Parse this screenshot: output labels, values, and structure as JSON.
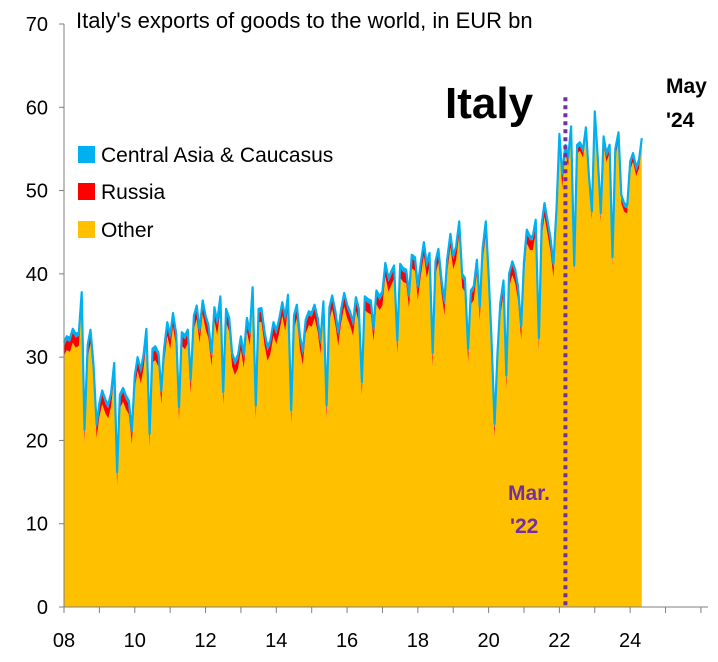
{
  "chart_data": {
    "type": "area",
    "title": "Italy's exports of goods to the world, in EUR bn",
    "ylim": [
      0,
      70
    ],
    "yticks": [
      "0",
      "10",
      "20",
      "30",
      "40",
      "50",
      "60",
      "70"
    ],
    "xlim": [
      2008,
      2026.2
    ],
    "xticks": [
      "08",
      "10",
      "12",
      "14",
      "16",
      "18",
      "20",
      "22",
      "24"
    ],
    "grid": false,
    "legend_position": "left",
    "colors": {
      "central_asia": "#00B0F0",
      "russia": "#FF0000",
      "other": "#FFC000",
      "marker": "#7030A0"
    },
    "series_names": [
      "Central Asia & Caucasus",
      "Russia",
      "Other"
    ],
    "total_series": [
      [
        2008.0,
        31.8
      ],
      [
        2008.08,
        32.5
      ],
      [
        2008.17,
        32.3
      ],
      [
        2008.25,
        33.4
      ],
      [
        2008.33,
        32.8
      ],
      [
        2008.42,
        33.0
      ],
      [
        2008.5,
        37.8
      ],
      [
        2008.58,
        21.3
      ],
      [
        2008.67,
        31.5
      ],
      [
        2008.75,
        33.3
      ],
      [
        2008.83,
        29.3
      ],
      [
        2008.92,
        21.9
      ],
      [
        2009.0,
        24.5
      ],
      [
        2009.08,
        26.0
      ],
      [
        2009.17,
        24.9
      ],
      [
        2009.25,
        24.3
      ],
      [
        2009.33,
        25.7
      ],
      [
        2009.42,
        29.3
      ],
      [
        2009.5,
        16.2
      ],
      [
        2009.58,
        25.5
      ],
      [
        2009.67,
        26.3
      ],
      [
        2009.75,
        25.4
      ],
      [
        2009.83,
        24.8
      ],
      [
        2009.92,
        21.2
      ],
      [
        2010.0,
        27.8
      ],
      [
        2010.08,
        30.0
      ],
      [
        2010.17,
        28.5
      ],
      [
        2010.25,
        30.3
      ],
      [
        2010.33,
        33.4
      ],
      [
        2010.42,
        20.8
      ],
      [
        2010.5,
        31.0
      ],
      [
        2010.58,
        31.3
      ],
      [
        2010.67,
        30.5
      ],
      [
        2010.75,
        26.0
      ],
      [
        2010.83,
        31.0
      ],
      [
        2010.92,
        34.2
      ],
      [
        2011.0,
        32.6
      ],
      [
        2011.08,
        35.3
      ],
      [
        2011.17,
        32.8
      ],
      [
        2011.25,
        24.0
      ],
      [
        2011.33,
        33.0
      ],
      [
        2011.42,
        32.6
      ],
      [
        2011.5,
        33.3
      ],
      [
        2011.58,
        27.3
      ],
      [
        2011.67,
        35.0
      ],
      [
        2011.75,
        36.2
      ],
      [
        2011.83,
        33.3
      ],
      [
        2011.92,
        36.8
      ],
      [
        2012.0,
        35.0
      ],
      [
        2012.08,
        33.9
      ],
      [
        2012.17,
        30.5
      ],
      [
        2012.25,
        36.0
      ],
      [
        2012.33,
        34.3
      ],
      [
        2012.42,
        37.3
      ],
      [
        2012.5,
        25.8
      ],
      [
        2012.58,
        35.8
      ],
      [
        2012.67,
        34.7
      ],
      [
        2012.75,
        30.5
      ],
      [
        2012.83,
        29.5
      ],
      [
        2012.92,
        30.3
      ],
      [
        2013.0,
        32.5
      ],
      [
        2013.08,
        30.3
      ],
      [
        2013.17,
        34.7
      ],
      [
        2013.25,
        33.0
      ],
      [
        2013.33,
        38.4
      ],
      [
        2013.42,
        24.2
      ],
      [
        2013.5,
        35.8
      ],
      [
        2013.58,
        35.9
      ],
      [
        2013.67,
        33.0
      ],
      [
        2013.75,
        31.2
      ],
      [
        2013.83,
        32.0
      ],
      [
        2013.92,
        34.2
      ],
      [
        2014.0,
        33.2
      ],
      [
        2014.08,
        34.5
      ],
      [
        2014.17,
        36.6
      ],
      [
        2014.25,
        34.8
      ],
      [
        2014.33,
        37.5
      ],
      [
        2014.42,
        23.6
      ],
      [
        2014.5,
        35.0
      ],
      [
        2014.58,
        36.3
      ],
      [
        2014.67,
        32.5
      ],
      [
        2014.75,
        30.7
      ],
      [
        2014.83,
        34.5
      ],
      [
        2014.92,
        35.5
      ],
      [
        2015.0,
        35.3
      ],
      [
        2015.08,
        36.3
      ],
      [
        2015.17,
        34.7
      ],
      [
        2015.25,
        32.0
      ],
      [
        2015.33,
        36.7
      ],
      [
        2015.42,
        24.2
      ],
      [
        2015.5,
        36.0
      ],
      [
        2015.58,
        37.4
      ],
      [
        2015.67,
        35.5
      ],
      [
        2015.75,
        33.0
      ],
      [
        2015.83,
        35.7
      ],
      [
        2015.92,
        37.7
      ],
      [
        2016.0,
        36.3
      ],
      [
        2016.08,
        35.5
      ],
      [
        2016.17,
        34.2
      ],
      [
        2016.25,
        37.2
      ],
      [
        2016.33,
        35.8
      ],
      [
        2016.42,
        27.0
      ],
      [
        2016.5,
        37.3
      ],
      [
        2016.58,
        37.0
      ],
      [
        2016.67,
        36.8
      ],
      [
        2016.75,
        33.5
      ],
      [
        2016.83,
        38.0
      ],
      [
        2016.92,
        37.3
      ],
      [
        2017.0,
        37.9
      ],
      [
        2017.08,
        41.3
      ],
      [
        2017.17,
        39.5
      ],
      [
        2017.25,
        40.3
      ],
      [
        2017.33,
        41.0
      ],
      [
        2017.42,
        32.0
      ],
      [
        2017.5,
        41.2
      ],
      [
        2017.58,
        40.7
      ],
      [
        2017.67,
        40.5
      ],
      [
        2017.75,
        37.5
      ],
      [
        2017.83,
        42.3
      ],
      [
        2017.92,
        42.0
      ],
      [
        2018.0,
        38.5
      ],
      [
        2018.08,
        41.3
      ],
      [
        2018.17,
        43.8
      ],
      [
        2018.25,
        41.2
      ],
      [
        2018.33,
        42.5
      ],
      [
        2018.42,
        30.5
      ],
      [
        2018.5,
        41.5
      ],
      [
        2018.58,
        43.0
      ],
      [
        2018.67,
        39.2
      ],
      [
        2018.75,
        36.7
      ],
      [
        2018.83,
        41.8
      ],
      [
        2018.92,
        44.8
      ],
      [
        2019.0,
        42.2
      ],
      [
        2019.08,
        43.3
      ],
      [
        2019.17,
        46.3
      ],
      [
        2019.25,
        40.0
      ],
      [
        2019.33,
        39.5
      ],
      [
        2019.42,
        31.0
      ],
      [
        2019.5,
        38.0
      ],
      [
        2019.58,
        38.5
      ],
      [
        2019.67,
        41.7
      ],
      [
        2019.75,
        36.0
      ],
      [
        2019.83,
        43.0
      ],
      [
        2019.92,
        46.3
      ],
      [
        2020.0,
        40.0
      ],
      [
        2020.08,
        32.5
      ],
      [
        2020.17,
        22.0
      ],
      [
        2020.25,
        30.5
      ],
      [
        2020.33,
        36.5
      ],
      [
        2020.42,
        39.2
      ],
      [
        2020.5,
        27.8
      ],
      [
        2020.58,
        40.0
      ],
      [
        2020.67,
        41.5
      ],
      [
        2020.75,
        40.5
      ],
      [
        2020.83,
        38.5
      ],
      [
        2020.92,
        33.7
      ],
      [
        2021.0,
        41.5
      ],
      [
        2021.08,
        45.3
      ],
      [
        2021.17,
        44.5
      ],
      [
        2021.25,
        44.5
      ],
      [
        2021.33,
        46.5
      ],
      [
        2021.42,
        32.3
      ],
      [
        2021.5,
        46.0
      ],
      [
        2021.58,
        48.5
      ],
      [
        2021.67,
        46.3
      ],
      [
        2021.75,
        44.3
      ],
      [
        2021.83,
        41.2
      ],
      [
        2021.92,
        48.0
      ],
      [
        2022.0,
        56.8
      ],
      [
        2022.08,
        52.0
      ],
      [
        2022.17,
        55.5
      ],
      [
        2022.25,
        54.0
      ],
      [
        2022.33,
        57.7
      ],
      [
        2022.42,
        41.0
      ],
      [
        2022.5,
        55.5
      ],
      [
        2022.58,
        55.8
      ],
      [
        2022.67,
        55.0
      ],
      [
        2022.75,
        57.6
      ],
      [
        2022.83,
        52.0
      ],
      [
        2022.92,
        47.5
      ],
      [
        2023.0,
        59.5
      ],
      [
        2023.08,
        54.3
      ],
      [
        2023.17,
        47.3
      ],
      [
        2023.25,
        56.5
      ],
      [
        2023.33,
        54.5
      ],
      [
        2023.42,
        55.5
      ],
      [
        2023.5,
        42.0
      ],
      [
        2023.58,
        55.0
      ],
      [
        2023.67,
        57.0
      ],
      [
        2023.75,
        49.5
      ],
      [
        2023.83,
        48.5
      ],
      [
        2023.92,
        48.3
      ],
      [
        2024.0,
        53.5
      ],
      [
        2024.08,
        54.5
      ],
      [
        2024.17,
        52.8
      ],
      [
        2024.25,
        53.7
      ],
      [
        2024.33,
        56.3
      ]
    ],
    "russia_band_before_2022": 1.2,
    "russia_band_after_2022": 0.6,
    "central_asia_band": 0.45,
    "annotations": {
      "country": "Italy",
      "end_label_line1": "May",
      "end_label_line2": "'24",
      "marker_label_line1": "Mar.",
      "marker_label_line2": "'22",
      "marker_x": 2022.17
    }
  }
}
